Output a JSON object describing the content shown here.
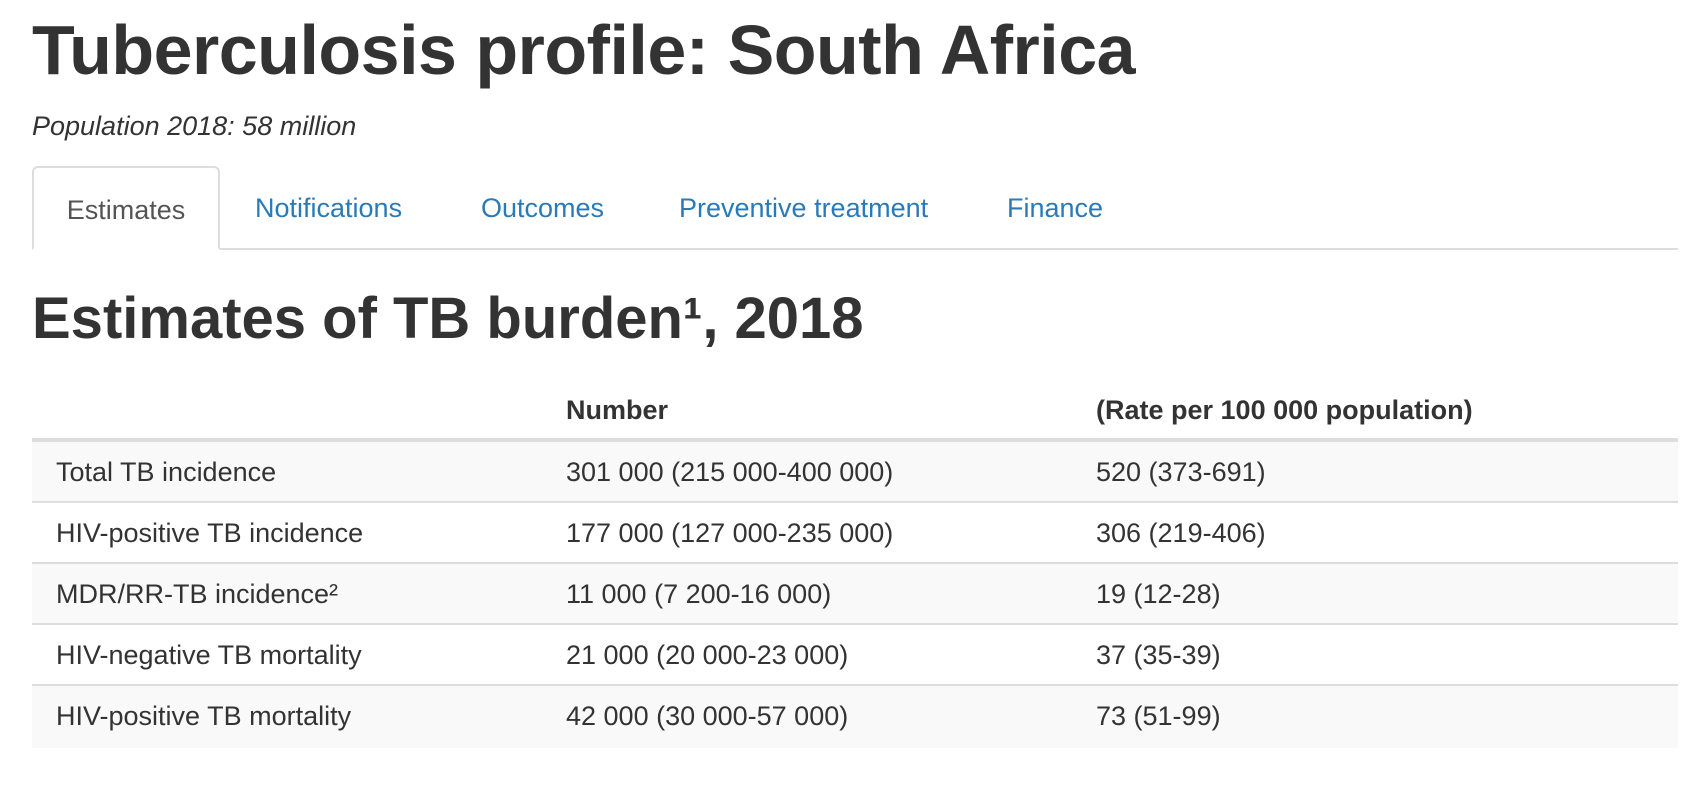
{
  "header": {
    "title": "Tuberculosis profile: South Africa",
    "population": "Population 2018: 58 million"
  },
  "tabs": [
    {
      "label": "Estimates",
      "active": true
    },
    {
      "label": "Notifications",
      "active": false
    },
    {
      "label": "Outcomes",
      "active": false
    },
    {
      "label": "Preventive treatment",
      "active": false
    },
    {
      "label": "Finance",
      "active": false
    }
  ],
  "section": {
    "title_main": "Estimates of TB burden",
    "title_sup": "¹",
    "title_suffix": ", 2018"
  },
  "table": {
    "columns": [
      "",
      "Number",
      "(Rate per 100 000 population)"
    ],
    "rows": [
      {
        "label": "Total TB incidence",
        "number": "301 000 (215 000-400 000)",
        "rate": "520 (373-691)"
      },
      {
        "label": "HIV-positive TB incidence",
        "number": "177 000 (127 000-235 000)",
        "rate": "306 (219-406)"
      },
      {
        "label": "MDR/RR-TB incidence²",
        "number": "11 000 (7 200-16 000)",
        "rate": "19 (12-28)"
      },
      {
        "label": "HIV-negative TB mortality",
        "number": "21 000 (20 000-23 000)",
        "rate": "37 (35-39)"
      },
      {
        "label": "HIV-positive TB mortality",
        "number": "42 000 (30 000-57 000)",
        "rate": "73 (51-99)"
      }
    ]
  },
  "colors": {
    "text": "#333333",
    "link": "#2a7ab8",
    "active_tab_text": "#555555",
    "border": "#dddddd",
    "stripe": "#f9f9f9"
  }
}
